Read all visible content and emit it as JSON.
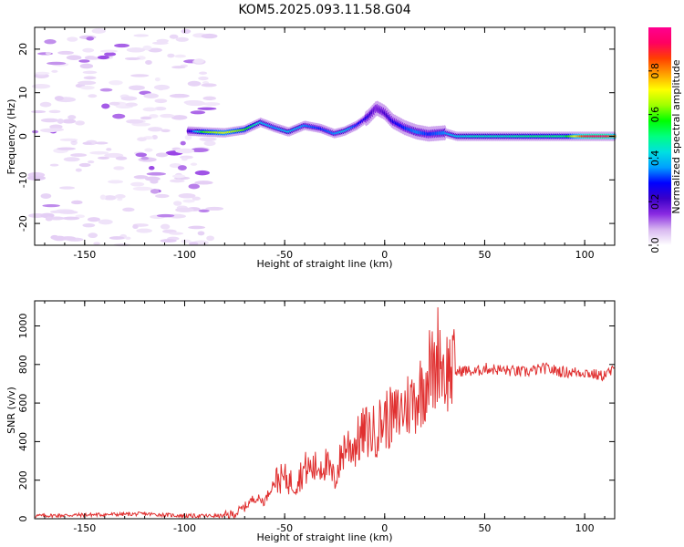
{
  "title": "KOM5.2025.093.11.58.G04",
  "chart_data": [
    {
      "type": "heatmap",
      "xlabel": "Height of straight line (km)",
      "ylabel": "Frequency (Hz)",
      "xlim": [
        -175,
        115
      ],
      "ylim": [
        -25,
        25
      ],
      "x_ticks": [
        -150,
        -100,
        -50,
        0,
        50,
        100
      ],
      "y_ticks": [
        -20,
        -10,
        0,
        10,
        20
      ],
      "colorbar": {
        "label": "Normalized spectral amplitude",
        "range": [
          0,
          1
        ],
        "ticks": [
          0.0,
          0.2,
          0.4,
          0.6,
          0.8
        ],
        "tick_labels": [
          "0.0",
          "0.2",
          "0.4",
          "0.6",
          "0.8"
        ],
        "colors": [
          "#ffffff",
          "#d8b8f0",
          "#8a2be2",
          "#3a00c8",
          "#0000ff",
          "#00a0ff",
          "#00e0e0",
          "#00ff80",
          "#00ff00",
          "#a0ff00",
          "#ffff00",
          "#ffa000",
          "#ff4000",
          "#ff0060",
          "#ff0090"
        ]
      },
      "signal_track": {
        "x": [
          -98,
          -90,
          -80,
          -70,
          -62,
          -55,
          -48,
          -40,
          -32,
          -25,
          -20,
          -14,
          -8,
          -4,
          0,
          4,
          10,
          16,
          22,
          30,
          36,
          45,
          60,
          75,
          90,
          100,
          110,
          115
        ],
        "freq": [
          1.2,
          1.0,
          0.8,
          1.5,
          3.2,
          2.0,
          1.0,
          2.5,
          1.8,
          0.6,
          1.2,
          2.5,
          4.5,
          6.5,
          5.5,
          3.5,
          2.0,
          1.0,
          0.5,
          0.8,
          0.0,
          0.0,
          0.0,
          0.0,
          0.0,
          0.0,
          0.0,
          0.0
        ],
        "amplitude": [
          0.2,
          0.6,
          0.7,
          0.6,
          0.4,
          0.35,
          0.4,
          0.35,
          0.3,
          0.35,
          0.4,
          0.3,
          0.25,
          0.15,
          0.2,
          0.25,
          0.3,
          0.35,
          0.3,
          0.35,
          0.4,
          0.45,
          0.45,
          0.5,
          0.5,
          0.9,
          0.95,
          0.8
        ]
      },
      "noise_region_x": [
        -175,
        -85
      ]
    },
    {
      "type": "line",
      "xlabel": "Height of straight line (km)",
      "ylabel": "SNR (v/v)",
      "xlim": [
        -175,
        115
      ],
      "ylim": [
        0,
        1130
      ],
      "x_ticks": [
        -150,
        -100,
        -50,
        0,
        50,
        100
      ],
      "y_ticks": [
        0,
        200,
        400,
        600,
        800,
        1000
      ],
      "color": "#e03030",
      "x": [
        -175,
        -150,
        -120,
        -100,
        -90,
        -80,
        -75,
        -70,
        -65,
        -60,
        -55,
        -50,
        -45,
        -40,
        -35,
        -30,
        -25,
        -20,
        -15,
        -10,
        -5,
        0,
        5,
        10,
        15,
        20,
        22,
        25,
        27,
        30,
        32,
        35,
        40,
        45,
        50,
        60,
        70,
        80,
        90,
        100,
        108,
        115
      ],
      "y": [
        15,
        20,
        25,
        15,
        15,
        15,
        25,
        60,
        110,
        90,
        200,
        210,
        180,
        260,
        260,
        290,
        200,
        380,
        380,
        450,
        450,
        520,
        520,
        580,
        620,
        700,
        780,
        750,
        900,
        750,
        780,
        760,
        770,
        760,
        780,
        770,
        760,
        780,
        760,
        760,
        740,
        770
      ]
    }
  ]
}
